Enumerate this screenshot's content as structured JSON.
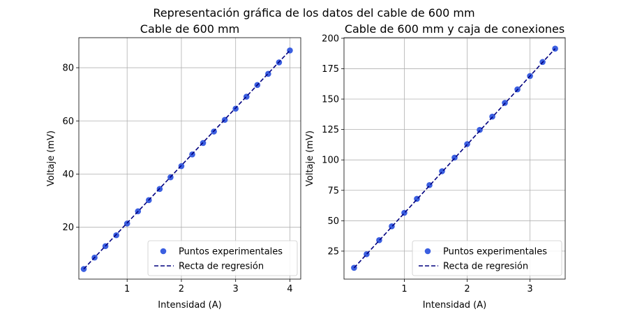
{
  "suptitle": "Representación gráfica de los datos del cable de 600 mm",
  "colors": {
    "points": "#3b5fe0",
    "line": "#00007f",
    "grid": "#b0b0b0",
    "axes": "#000000"
  },
  "chart_data": [
    {
      "type": "scatter",
      "title": "Cable de 600 mm",
      "xlabel": "Intensidad (A)",
      "ylabel": "Voltaje (mV)",
      "xlim": [
        0.11,
        4.2
      ],
      "ylim": [
        0.5,
        91.3
      ],
      "xticks": [
        1,
        2,
        3,
        4
      ],
      "yticks": [
        20,
        40,
        60,
        80
      ],
      "grid": true,
      "legend_position": "lower right",
      "series": [
        {
          "name": "Puntos experimentales",
          "kind": "markers",
          "x": [
            0.2,
            0.4,
            0.6,
            0.8,
            1.0,
            1.2,
            1.4,
            1.6,
            1.8,
            2.0,
            2.2,
            2.4,
            2.6,
            2.8,
            3.0,
            3.2,
            3.4,
            3.6,
            3.8,
            4.0
          ],
          "y": [
            4.3,
            8.6,
            12.9,
            17.0,
            21.4,
            26.0,
            30.2,
            34.4,
            38.8,
            43.0,
            47.4,
            51.7,
            56.0,
            60.4,
            64.6,
            69.1,
            73.5,
            77.7,
            82.0,
            86.5
          ]
        },
        {
          "name": "Recta de regresión",
          "kind": "dashed-line",
          "x": [
            0.2,
            4.0
          ],
          "y": [
            4.3,
            86.5
          ]
        }
      ]
    },
    {
      "type": "scatter",
      "title": "Cable de 600 mm y caja de conexiones",
      "xlabel": "Intensidad (A)",
      "ylabel": "Voltaje (mV)",
      "xlim": [
        0.04,
        3.56
      ],
      "ylim": [
        2.0,
        200.5
      ],
      "xticks": [
        1,
        2,
        3
      ],
      "yticks": [
        25,
        50,
        75,
        100,
        125,
        150,
        175,
        200
      ],
      "grid": true,
      "legend_position": "lower right",
      "series": [
        {
          "name": "Puntos experimentales",
          "kind": "markers",
          "x": [
            0.2,
            0.4,
            0.6,
            0.8,
            1.0,
            1.2,
            1.4,
            1.6,
            1.8,
            2.0,
            2.2,
            2.4,
            2.6,
            2.8,
            3.0,
            3.2,
            3.4
          ],
          "y": [
            11.3,
            22.5,
            34.0,
            45.4,
            56.5,
            68.0,
            79.3,
            90.7,
            101.9,
            113.0,
            124.7,
            135.6,
            146.9,
            158.0,
            169.0,
            180.5,
            191.5
          ]
        },
        {
          "name": "Recta de regresión",
          "kind": "dashed-line",
          "x": [
            0.2,
            3.4
          ],
          "y": [
            11.2,
            191.5
          ]
        }
      ]
    }
  ]
}
